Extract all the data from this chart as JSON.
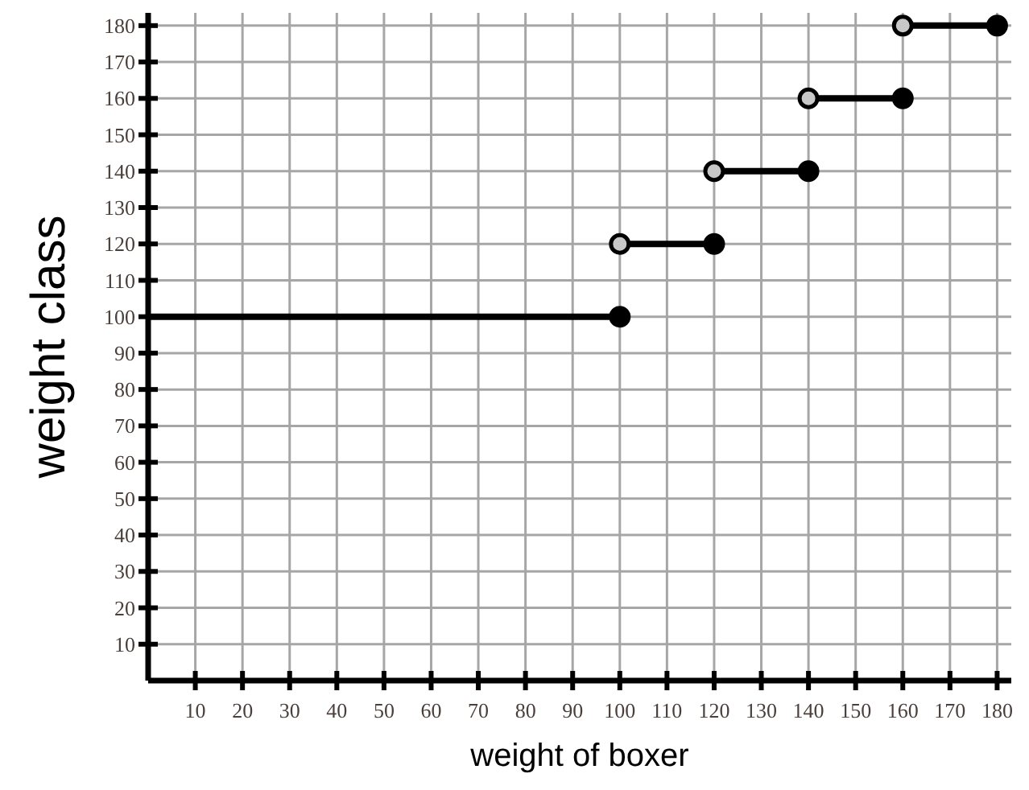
{
  "chart_data": {
    "type": "line",
    "xlabel": "weight of boxer",
    "ylabel": "weight class",
    "xlim": [
      0,
      183
    ],
    "ylim": [
      0,
      183.5
    ],
    "xticks": [
      10,
      20,
      30,
      40,
      50,
      60,
      70,
      80,
      90,
      100,
      110,
      120,
      130,
      140,
      150,
      160,
      170,
      180
    ],
    "yticks": [
      10,
      20,
      30,
      40,
      50,
      60,
      70,
      80,
      90,
      100,
      110,
      120,
      130,
      140,
      150,
      160,
      170,
      180
    ],
    "grid": true,
    "line_style": "solid",
    "series": [
      {
        "color": "#000000",
        "x": [
          0,
          100
        ],
        "values": [
          100,
          100
        ],
        "marker": "none"
      },
      {
        "color": "#000000",
        "x": [
          100,
          120
        ],
        "values": [
          120,
          120
        ],
        "marker": "none"
      },
      {
        "color": "#000000",
        "x": [
          120,
          140
        ],
        "values": [
          140,
          140
        ],
        "marker": "none"
      },
      {
        "color": "#000000",
        "x": [
          140,
          160
        ],
        "values": [
          160,
          160
        ],
        "marker": "none"
      },
      {
        "color": "#000000",
        "x": [
          160,
          180
        ],
        "values": [
          180,
          180
        ],
        "marker": "none"
      },
      {
        "type": "scatter",
        "color": "#000000",
        "x": [
          100,
          120,
          140,
          160,
          180
        ],
        "values": [
          100,
          120,
          140,
          160,
          180
        ],
        "marker": "circle"
      },
      {
        "type": "scatter",
        "color": "#c8c8c8",
        "x": [
          100,
          120,
          140,
          160
        ],
        "values": [
          120,
          140,
          160,
          180
        ],
        "marker": "circle"
      }
    ]
  }
}
